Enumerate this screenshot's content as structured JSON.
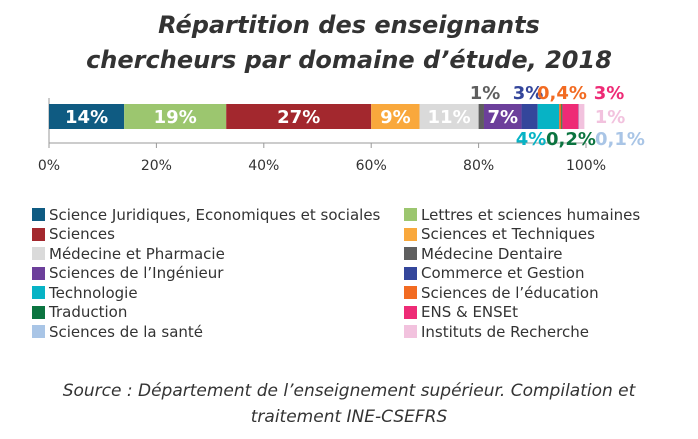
{
  "chart_data": {
    "type": "bar",
    "orientation": "horizontal-stacked",
    "title": "Répartition des enseignants chercheurs par domaine d’étude, 2018",
    "xlim": [
      0,
      100
    ],
    "xticks": [
      "0%",
      "20%",
      "40%",
      "60%",
      "80%",
      "100%"
    ],
    "legend_position": "bottom",
    "series": [
      {
        "name": "Science Juridiques, Economiques et sociales",
        "value": 14,
        "label": "14%",
        "color": "#0f5b82"
      },
      {
        "name": "Lettres et sciences humaines",
        "value": 19,
        "label": "19%",
        "color": "#9cc66f"
      },
      {
        "name": "Sciences",
        "value": 27,
        "label": "27%",
        "color": "#a3282e"
      },
      {
        "name": "Sciences et Techniques",
        "value": 9,
        "label": "9%",
        "color": "#f9a83c"
      },
      {
        "name": "Médecine et Pharmacie",
        "value": 11,
        "label": "11%",
        "color": "#dadada"
      },
      {
        "name": "Médecine Dentaire",
        "value": 1,
        "label": "1%",
        "color": "#5f5f5f"
      },
      {
        "name": "Sciences de l’Ingénieur",
        "value": 7,
        "label": "7%",
        "color": "#6c3f9b"
      },
      {
        "name": "Commerce et Gestion",
        "value": 3,
        "label": "3%",
        "color": "#34469b"
      },
      {
        "name": "Technologie",
        "value": 4,
        "label": "4%",
        "color": "#07b3c5"
      },
      {
        "name": "Sciences de l’éducation",
        "value": 0.4,
        "label": "0,4%",
        "color": "#f26b22"
      },
      {
        "name": "Traduction",
        "value": 0.2,
        "label": "0,2%",
        "color": "#0b7440"
      },
      {
        "name": "ENS & ENSEt",
        "value": 3,
        "label": "3%",
        "color": "#ee2b76"
      },
      {
        "name": "Sciences de la santé",
        "value": 0.1,
        "label": "0,1%",
        "color": "#a9c5e6"
      },
      {
        "name": "Instituts de Recherche",
        "value": 1,
        "label": "1%",
        "color": "#f2c2de"
      }
    ]
  },
  "title_line1": "Répartition des enseignants",
  "title_line2": "chercheurs par domaine d’étude, 2018",
  "source_line1": "Source : Département de l’enseignement supérieur. Compilation et",
  "source_line2": "traitement INE-CSEFRS"
}
